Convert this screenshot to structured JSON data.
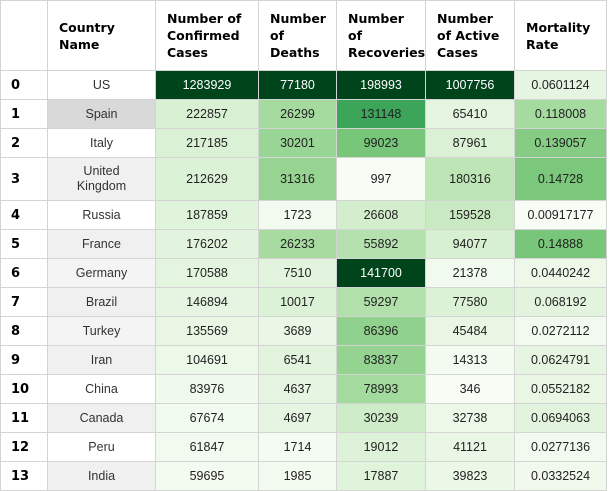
{
  "chart_data": {
    "type": "table",
    "columns": [
      "Country Name",
      "Number of Confirmed Cases",
      "Number of Deaths",
      "Number of Recoveries",
      "Number of Active Cases",
      "Mortality Rate"
    ],
    "rows": [
      {
        "index": "0",
        "country": "US",
        "confirmed": "1283929",
        "deaths": "77180",
        "recovered": "198993",
        "active": "1007756",
        "mortality": "0.0601124"
      },
      {
        "index": "1",
        "country": "Spain",
        "confirmed": "222857",
        "deaths": "26299",
        "recovered": "131148",
        "active": "65410",
        "mortality": "0.118008"
      },
      {
        "index": "2",
        "country": "Italy",
        "confirmed": "217185",
        "deaths": "30201",
        "recovered": "99023",
        "active": "87961",
        "mortality": "0.139057"
      },
      {
        "index": "3",
        "country": "United Kingdom",
        "confirmed": "212629",
        "deaths": "31316",
        "recovered": "997",
        "active": "180316",
        "mortality": "0.14728"
      },
      {
        "index": "4",
        "country": "Russia",
        "confirmed": "187859",
        "deaths": "1723",
        "recovered": "26608",
        "active": "159528",
        "mortality": "0.00917177"
      },
      {
        "index": "5",
        "country": "France",
        "confirmed": "176202",
        "deaths": "26233",
        "recovered": "55892",
        "active": "94077",
        "mortality": "0.14888"
      },
      {
        "index": "6",
        "country": "Germany",
        "confirmed": "170588",
        "deaths": "7510",
        "recovered": "141700",
        "active": "21378",
        "mortality": "0.0440242"
      },
      {
        "index": "7",
        "country": "Brazil",
        "confirmed": "146894",
        "deaths": "10017",
        "recovered": "59297",
        "active": "77580",
        "mortality": "0.068192"
      },
      {
        "index": "8",
        "country": "Turkey",
        "confirmed": "135569",
        "deaths": "3689",
        "recovered": "86396",
        "active": "45484",
        "mortality": "0.0272112"
      },
      {
        "index": "9",
        "country": "Iran",
        "confirmed": "104691",
        "deaths": "6541",
        "recovered": "83837",
        "active": "14313",
        "mortality": "0.0624791"
      },
      {
        "index": "10",
        "country": "China",
        "confirmed": "83976",
        "deaths": "4637",
        "recovered": "78993",
        "active": "346",
        "mortality": "0.0552182"
      },
      {
        "index": "11",
        "country": "Canada",
        "confirmed": "67674",
        "deaths": "4697",
        "recovered": "30239",
        "active": "32738",
        "mortality": "0.0694063"
      },
      {
        "index": "12",
        "country": "Peru",
        "confirmed": "61847",
        "deaths": "1714",
        "recovered": "19012",
        "active": "41121",
        "mortality": "0.0277136"
      },
      {
        "index": "13",
        "country": "India",
        "confirmed": "59695",
        "deaths": "1985",
        "recovered": "17887",
        "active": "39823",
        "mortality": "0.0332524"
      }
    ],
    "cell_colors": {
      "country": [
        "#ffffff",
        "#d9d9d9",
        "#ffffff",
        "#f0f0f0",
        "#ffffff",
        "#f0f0f0",
        "#f4f4f4",
        "#f0f0f0",
        "#f4f4f4",
        "#f0f0f0",
        "#ffffff",
        "#f0f0f0",
        "#ffffff",
        "#f0f0f0"
      ],
      "confirmed": [
        "#00441b",
        "#d9f0d3",
        "#dbf1d6",
        "#dcf2d7",
        "#e0f3db",
        "#e2f4dd",
        "#e4f5df",
        "#e6f5e1",
        "#e8f6e3",
        "#ecf8e8",
        "#eff9ec",
        "#f1faee",
        "#f2faf0",
        "#f3faf0"
      ],
      "deaths": [
        "#00441b",
        "#a6dba0",
        "#99d595",
        "#97d492",
        "#f3faf0",
        "#a7dba0",
        "#e2f4dd",
        "#dcf2d7",
        "#eaf7e6",
        "#e3f4de",
        "#e6f5e1",
        "#e6f5e1",
        "#f4fbf2",
        "#f3faf0"
      ],
      "recovered": [
        "#00441b",
        "#3ca559",
        "#77c679",
        "#f7fcf5",
        "#d3eecd",
        "#b5e1ae",
        "#00441b",
        "#b2e0ab",
        "#90d18d",
        "#95d391",
        "#a3da9d",
        "#cdecc7",
        "#ddf2d8",
        "#e0f3db"
      ],
      "active": [
        "#00441b",
        "#e5f5e0",
        "#dbf1d5",
        "#bde5b6",
        "#c8e9c1",
        "#d8f0d2",
        "#f1faee",
        "#dcf2d7",
        "#e8f6e3",
        "#f3faf0",
        "#f7fcf5",
        "#ecf8e8",
        "#eaf7e6",
        "#ebf7e7"
      ],
      "mortality": [
        "#e6f5e1",
        "#a5db9f",
        "#87cc85",
        "#7bc87c",
        "#f7fcf5",
        "#78c679",
        "#edf8e9",
        "#e3f4de",
        "#f2faef",
        "#e6f5e1",
        "#e8f6e3",
        "#e3f4de",
        "#f2faef",
        "#f0f9ec"
      ]
    },
    "dark_text_cells": {
      "confirmed": [
        0
      ],
      "deaths": [
        0
      ],
      "recovered": [
        0,
        6
      ],
      "active": [
        0
      ]
    }
  }
}
